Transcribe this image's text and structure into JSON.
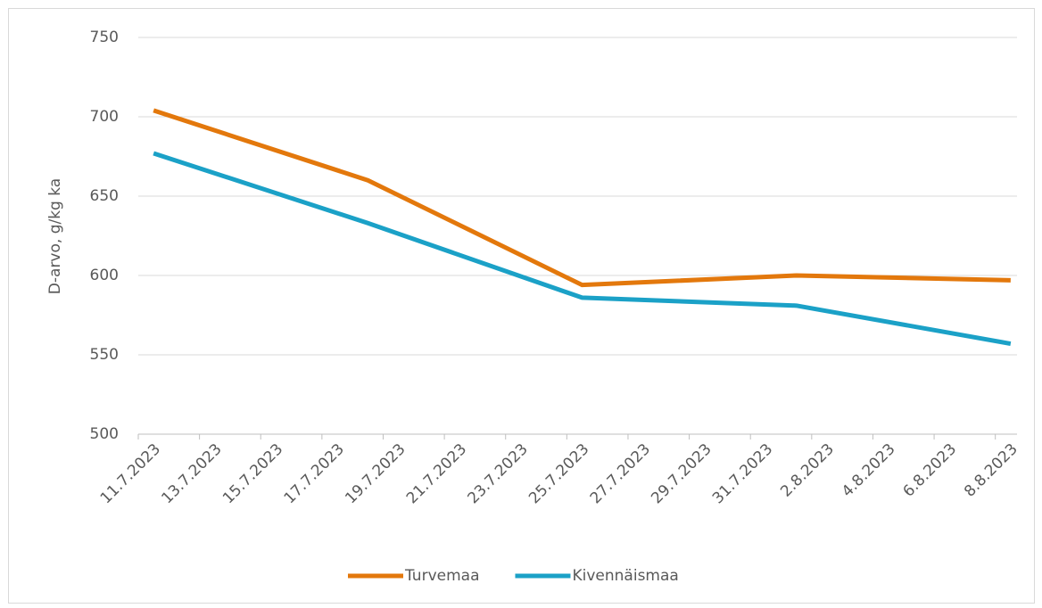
{
  "chart_data": {
    "type": "line",
    "y_label": "D-arvo, g/kg ka",
    "x": [
      "2023-07-11",
      "2023-07-18",
      "2023-07-25",
      "2023-08-01",
      "2023-08-08"
    ],
    "series": [
      {
        "name": "Turvemaa",
        "color": "#e3780c",
        "values": [
          704,
          660,
          594,
          600,
          597
        ]
      },
      {
        "name": "Kivennäismaa",
        "color": "#1ba1c7",
        "values": [
          677,
          633,
          586,
          581,
          557
        ]
      }
    ],
    "xlim": [
      "2023-07-11",
      "2023-08-09"
    ],
    "xticks": [
      {
        "value": "2023-07-11",
        "label": "11.7.2023"
      },
      {
        "value": "2023-07-13",
        "label": "13.7.2023"
      },
      {
        "value": "2023-07-15",
        "label": "15.7.2023"
      },
      {
        "value": "2023-07-17",
        "label": "17.7.2023"
      },
      {
        "value": "2023-07-19",
        "label": "19.7.2023"
      },
      {
        "value": "2023-07-21",
        "label": "21.7.2023"
      },
      {
        "value": "2023-07-23",
        "label": "23.7.2023"
      },
      {
        "value": "2023-07-25",
        "label": "25.7.2023"
      },
      {
        "value": "2023-07-27",
        "label": "27.7.2023"
      },
      {
        "value": "2023-07-29",
        "label": "29.7.2023"
      },
      {
        "value": "2023-07-31",
        "label": "31.7.2023"
      },
      {
        "value": "2023-08-02",
        "label": "2.8.2023"
      },
      {
        "value": "2023-08-04",
        "label": "4.8.2023"
      },
      {
        "value": "2023-08-06",
        "label": "6.8.2023"
      },
      {
        "value": "2023-08-08",
        "label": "8.8.2023"
      }
    ],
    "ylim": [
      500,
      750
    ],
    "yticks": [
      500,
      550,
      600,
      650,
      700,
      750
    ],
    "grid": true,
    "legend": "bottom"
  }
}
